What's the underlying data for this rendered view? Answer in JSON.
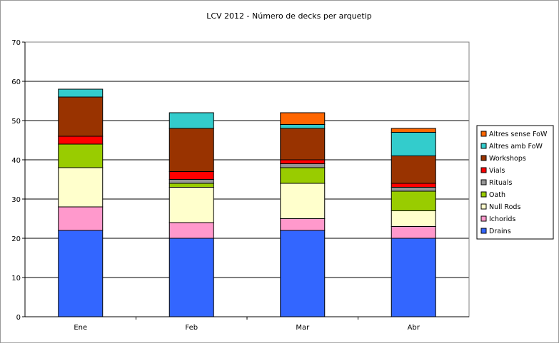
{
  "chart_data": {
    "type": "bar",
    "stacked": true,
    "title": "LCV 2012 - Número de decks per arquetip",
    "xlabel": "",
    "ylabel": "",
    "categories": [
      "Ene",
      "Feb",
      "Mar",
      "Abr"
    ],
    "ylim": [
      0,
      70
    ],
    "yticks": [
      0,
      10,
      20,
      30,
      40,
      50,
      60,
      70
    ],
    "grid": true,
    "legend_position": "right",
    "series": [
      {
        "name": "Drains",
        "color": "#3366ff",
        "values": [
          22,
          20,
          22,
          20
        ]
      },
      {
        "name": "Ichorids",
        "color": "#ff99cc",
        "values": [
          6,
          4,
          3,
          3
        ]
      },
      {
        "name": "Null Rods",
        "color": "#ffffcc",
        "values": [
          10,
          9,
          9,
          4
        ]
      },
      {
        "name": "Oath",
        "color": "#99cc00",
        "values": [
          6,
          1,
          4,
          5
        ]
      },
      {
        "name": "Rituals",
        "color": "#969696",
        "values": [
          0,
          1,
          1,
          1
        ]
      },
      {
        "name": "Vials",
        "color": "#ff0000",
        "values": [
          2,
          2,
          1,
          1
        ]
      },
      {
        "name": "Workshops",
        "color": "#993300",
        "values": [
          10,
          11,
          8,
          7
        ]
      },
      {
        "name": "Altres amb FoW",
        "color": "#33cccc",
        "values": [
          2,
          4,
          1,
          6
        ]
      },
      {
        "name": "Altres sense FoW",
        "color": "#ff6600",
        "values": [
          0,
          0,
          3,
          1
        ]
      }
    ]
  }
}
